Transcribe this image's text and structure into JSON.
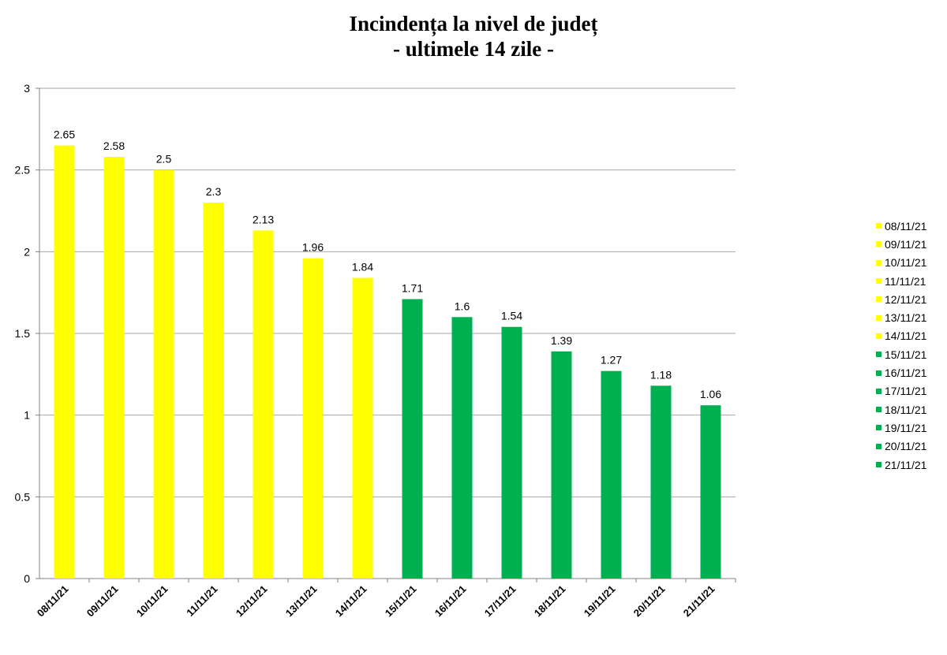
{
  "chart_data": {
    "type": "bar",
    "title": "Incindența la nivel de județ",
    "subtitle": "- ultimele 14 zile -",
    "xlabel": "",
    "ylabel": "",
    "categories": [
      "08/11/21",
      "09/11/21",
      "10/11/21",
      "11/11/21",
      "12/11/21",
      "13/11/21",
      "14/11/21",
      "15/11/21",
      "16/11/21",
      "17/11/21",
      "18/11/21",
      "19/11/21",
      "20/11/21",
      "21/11/21"
    ],
    "values": [
      2.65,
      2.58,
      2.5,
      2.3,
      2.13,
      1.96,
      1.84,
      1.71,
      1.6,
      1.54,
      1.39,
      1.27,
      1.18,
      1.06
    ],
    "value_labels": [
      "2.65",
      "2.58",
      "2.5",
      "2.3",
      "2.13",
      "1.96",
      "1.84",
      "1.71",
      "1.6",
      "1.54",
      "1.39",
      "1.27",
      "1.18",
      "1.06"
    ],
    "colors": [
      "#ffff00",
      "#ffff00",
      "#ffff00",
      "#ffff00",
      "#ffff00",
      "#ffff00",
      "#ffff00",
      "#00b050",
      "#00b050",
      "#00b050",
      "#00b050",
      "#00b050",
      "#00b050",
      "#00b050"
    ],
    "ylim": [
      0,
      3
    ],
    "yticks": [
      "0",
      "0.5",
      "1",
      "1.5",
      "2",
      "2.5",
      "3"
    ],
    "grid": true,
    "legend_position": "right"
  }
}
